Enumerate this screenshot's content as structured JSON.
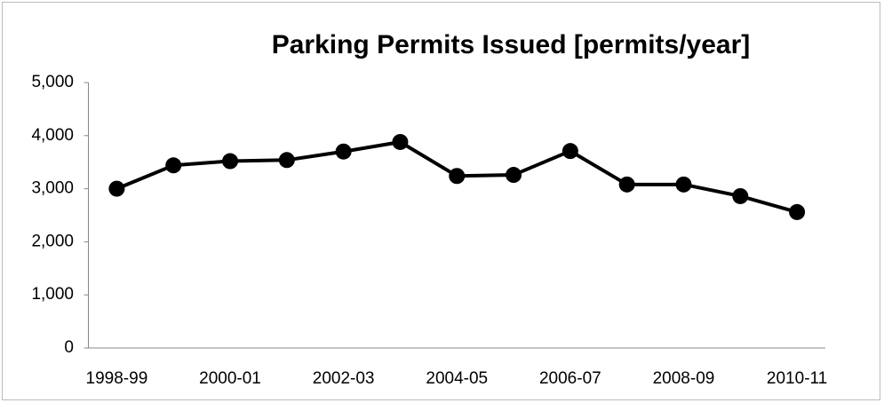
{
  "chart_data": {
    "type": "line",
    "title": "Parking Permits Issued [permits/year]",
    "categories": [
      "1998-99",
      null,
      "2000-01",
      null,
      "2002-03",
      null,
      "2004-05",
      null,
      "2006-07",
      null,
      "2008-09",
      null,
      "2010-11"
    ],
    "series": [
      {
        "name": "Parking Permits Issued",
        "color": "#000000",
        "values": [
          3000,
          3440,
          3520,
          3540,
          3700,
          3880,
          3240,
          3260,
          3710,
          3080,
          3080,
          2860,
          2560
        ]
      }
    ],
    "ylim": [
      0,
      5000
    ],
    "yticks": [
      0,
      {
        "value": 1000,
        "label": "1,000"
      },
      {
        "value": 2000,
        "label": "2,000"
      },
      {
        "value": 3000,
        "label": "3,000"
      },
      {
        "value": 4000,
        "label": "4,000"
      },
      {
        "value": 5000,
        "label": "5,000"
      }
    ],
    "grid": false
  }
}
